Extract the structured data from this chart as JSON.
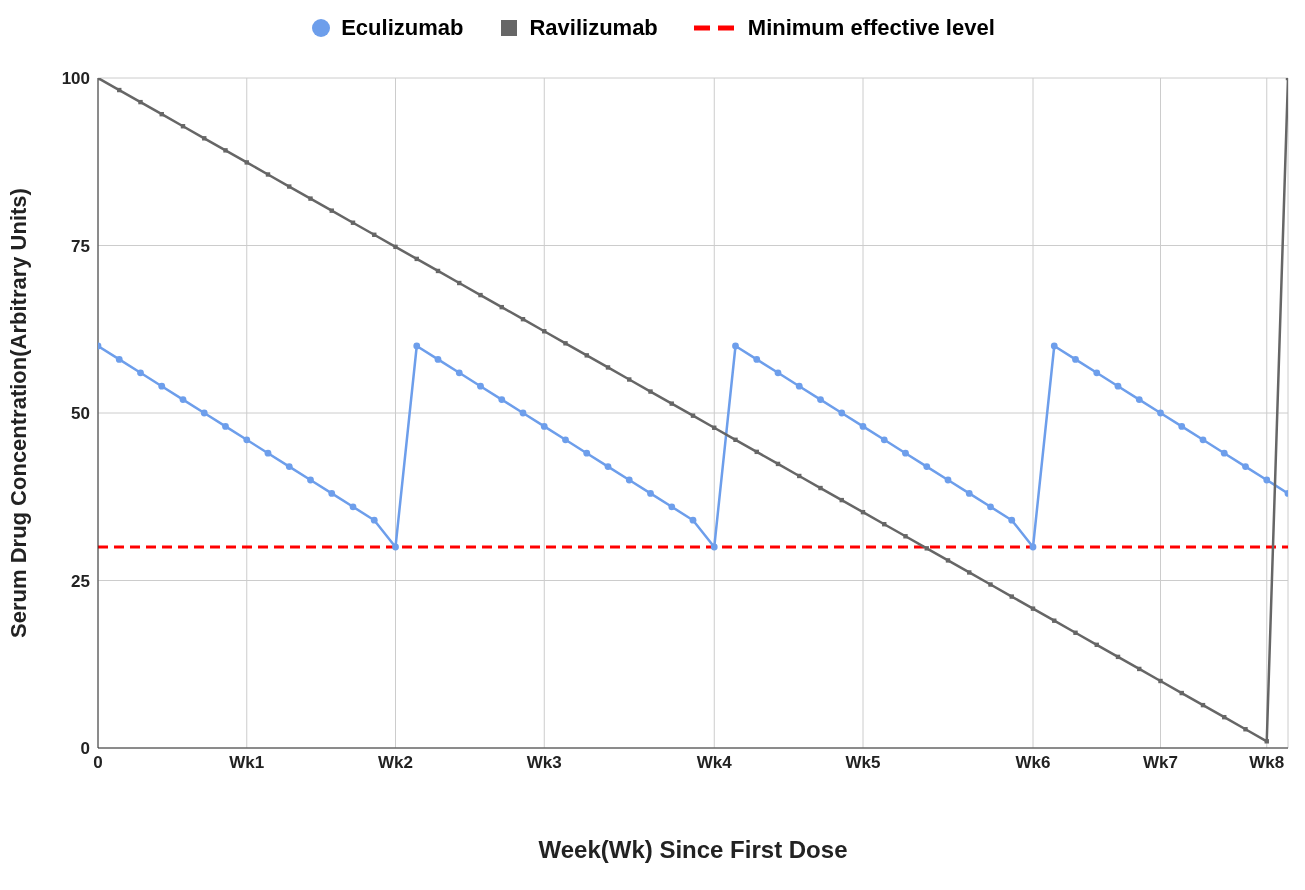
{
  "chart_data": {
    "type": "line",
    "xlabel": "Week(Wk) Since First Dose",
    "ylabel": "Serum Drug Concentration(Arbitrary Units)",
    "categories": [
      "0",
      null,
      null,
      null,
      null,
      null,
      null,
      "Wk1",
      null,
      null,
      null,
      null,
      null,
      null,
      "Wk2",
      null,
      null,
      null,
      null,
      null,
      null,
      "Wk3",
      null,
      null,
      null,
      null,
      null,
      null,
      null,
      "Wk4",
      null,
      null,
      null,
      null,
      null,
      null,
      "Wk5",
      null,
      null,
      null,
      null,
      null,
      null,
      null,
      "Wk6",
      null,
      null,
      null,
      null,
      null,
      "Wk7",
      null,
      null,
      null,
      null,
      "Wk8",
      null
    ],
    "series": [
      {
        "name": "Eculizumab",
        "color": "#6d9eeb",
        "marker": "circle",
        "values": [
          60,
          58,
          56,
          54,
          52,
          50,
          48,
          46,
          44,
          42,
          40,
          38,
          36,
          34,
          30,
          60,
          58,
          56,
          54,
          52,
          50,
          48,
          46,
          44,
          42,
          40,
          38,
          36,
          34,
          30,
          60,
          58,
          56,
          54,
          52,
          50,
          48,
          46,
          44,
          42,
          40,
          38,
          36,
          34,
          30,
          60,
          58,
          56,
          54,
          52,
          50,
          48,
          46,
          44,
          42,
          40,
          38
        ]
      },
      {
        "name": "Ravilizumab",
        "color": "#666666",
        "marker": "square",
        "values": [
          100,
          98.2,
          96.4,
          94.6,
          92.8,
          91,
          89.2,
          87.4,
          85.6,
          83.8,
          82,
          80.2,
          78.4,
          76.6,
          74.8,
          73,
          71.2,
          69.4,
          67.6,
          65.8,
          64,
          62.2,
          60.4,
          58.6,
          56.8,
          55,
          53.2,
          51.4,
          49.6,
          47.8,
          46,
          44.2,
          42.4,
          40.6,
          38.8,
          37,
          35.2,
          33.4,
          31.6,
          29.8,
          28,
          26.2,
          24.4,
          22.6,
          20.8,
          19,
          17.2,
          15.4,
          13.6,
          11.8,
          10,
          8.2,
          6.4,
          4.6,
          2.8,
          1,
          100
        ]
      }
    ],
    "ref_lines": [
      {
        "axis": "y",
        "value": 30,
        "label": "Minimum effective level",
        "color": "#ff0000",
        "line_style": "dashed"
      }
    ],
    "ylim": [
      0,
      100
    ],
    "yticks": [
      0,
      25,
      50,
      75,
      100
    ],
    "grid": true,
    "legend": "top",
    "line_style": "solid"
  }
}
